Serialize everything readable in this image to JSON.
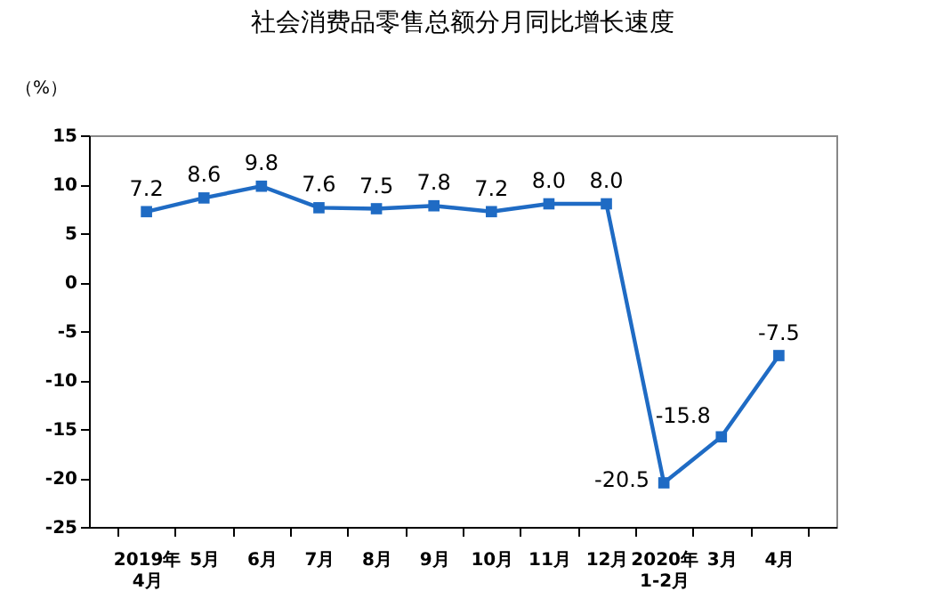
{
  "chart_data": {
    "type": "line",
    "title": "社会消费品零售总额分月同比增长速度",
    "ylabel": "（%）",
    "categories": [
      "2019年\n4月",
      "5月",
      "6月",
      "7月",
      "8月",
      "9月",
      "10月",
      "11月",
      "12月",
      "2020年\n1-2月",
      "3月",
      "4月"
    ],
    "series": [
      {
        "color": "#1f6bc4",
        "values": [
          7.2,
          8.6,
          9.8,
          7.6,
          7.5,
          7.8,
          7.2,
          8.0,
          8.0,
          -20.5,
          -15.8,
          -7.5
        ],
        "value_labels": [
          "7.2",
          "8.6",
          "9.8",
          "7.6",
          "7.5",
          "7.8",
          "7.2",
          "8.0",
          "8.0",
          "-20.5",
          "-15.8",
          "-7.5"
        ]
      }
    ],
    "ylim": [
      -25,
      15
    ],
    "yticks": [
      -25,
      -20,
      -15,
      -10,
      -5,
      0,
      5,
      10,
      15
    ],
    "grid": false,
    "legend": false,
    "marker": "square",
    "line_style": "solid"
  }
}
